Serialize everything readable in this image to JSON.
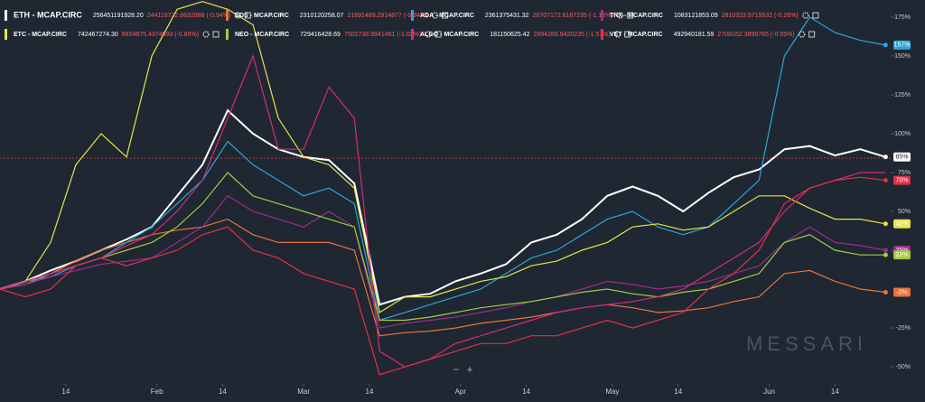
{
  "chart_data": {
    "type": "line",
    "x": [
      0,
      5,
      10,
      15,
      20,
      25,
      30,
      35,
      40,
      45,
      50,
      55,
      60,
      65,
      70,
      75,
      80,
      85,
      90,
      95,
      100,
      105,
      110,
      115,
      120,
      125,
      130,
      135,
      140,
      145,
      150,
      155,
      160,
      165,
      170,
      175
    ],
    "xlim": [
      0,
      176
    ],
    "xticks": [
      {
        "value": 13,
        "label": "14"
      },
      {
        "value": 31,
        "label": "Feb"
      },
      {
        "value": 44,
        "label": "14"
      },
      {
        "value": 60,
        "label": "Mar"
      },
      {
        "value": 73,
        "label": "14"
      },
      {
        "value": 91,
        "label": "Apr"
      },
      {
        "value": 104,
        "label": "14"
      },
      {
        "value": 121,
        "label": "May"
      },
      {
        "value": 134,
        "label": "14"
      },
      {
        "value": 152,
        "label": "Jun"
      },
      {
        "value": 165,
        "label": "14"
      }
    ],
    "ylim": [
      -61,
      186
    ],
    "yticks": [
      {
        "value": -50,
        "label": "-50%"
      },
      {
        "value": -25,
        "label": "-25%"
      },
      {
        "value": 25,
        "label": "25%"
      },
      {
        "value": 50,
        "label": "50%"
      },
      {
        "value": 75,
        "label": "75%"
      },
      {
        "value": 100,
        "label": "100%"
      },
      {
        "value": 125,
        "label": "125%"
      },
      {
        "value": 150,
        "label": "150%"
      },
      {
        "value": 175,
        "label": "175%"
      }
    ],
    "grid": false,
    "watermark": "MESSARI",
    "controls": [
      "−",
      "+"
    ],
    "series": [
      {
        "name": "ETH - MCAP.CIRC",
        "legend_value": "256451191928.20",
        "legend_change": "244119722.6632888 (-0.94%)",
        "color": "#ffffff",
        "values": [
          0,
          5,
          12,
          18,
          25,
          32,
          40,
          60,
          80,
          115,
          100,
          90,
          85,
          83,
          68,
          -10,
          -5,
          -3,
          5,
          10,
          16,
          30,
          35,
          45,
          60,
          66,
          60,
          50,
          62,
          72,
          77,
          90,
          92,
          86,
          90,
          85
        ],
        "value_labels": [
          null,
          null,
          null,
          null,
          null,
          null,
          null,
          null,
          null,
          null,
          null,
          null,
          null,
          null,
          null,
          null,
          null,
          null,
          null,
          null,
          null,
          null,
          null,
          null,
          null,
          null,
          null,
          null,
          null,
          null,
          null,
          null,
          null,
          null,
          null,
          "85%"
        ]
      },
      {
        "name": "EOS - MCAP.CIRC",
        "legend_value": "2310120258.07",
        "legend_change": "21891489.2914877 (-0.94%)",
        "color": "#e8743b",
        "values": [
          0,
          3,
          10,
          18,
          25,
          30,
          35,
          38,
          40,
          45,
          35,
          30,
          30,
          30,
          25,
          -30,
          -28,
          -27,
          -25,
          -22,
          -20,
          -18,
          -15,
          -12,
          -10,
          -12,
          -15,
          -14,
          -12,
          -8,
          -5,
          10,
          12,
          5,
          0,
          -2
        ],
        "value_labels": [
          null,
          null,
          null,
          null,
          null,
          null,
          null,
          null,
          null,
          null,
          null,
          null,
          null,
          null,
          null,
          null,
          null,
          null,
          null,
          null,
          null,
          null,
          null,
          null,
          null,
          null,
          null,
          null,
          null,
          null,
          null,
          null,
          null,
          null,
          null,
          "-2%"
        ]
      },
      {
        "name": "ADA - MCAP.CIRC",
        "legend_value": "2361375431.32",
        "legend_change": "26707172.6167235 (-1.12%)",
        "color": "#2aa6d9",
        "values": [
          0,
          5,
          8,
          15,
          20,
          30,
          40,
          55,
          70,
          95,
          80,
          70,
          60,
          65,
          55,
          -20,
          -15,
          -10,
          -5,
          0,
          10,
          20,
          25,
          35,
          45,
          50,
          40,
          35,
          40,
          55,
          70,
          150,
          175,
          165,
          160,
          157
        ],
        "value_labels": [
          null,
          null,
          null,
          null,
          null,
          null,
          null,
          null,
          null,
          null,
          null,
          null,
          null,
          null,
          null,
          null,
          null,
          null,
          null,
          null,
          null,
          null,
          null,
          null,
          null,
          null,
          null,
          null,
          null,
          null,
          null,
          null,
          null,
          null,
          null,
          "157%"
        ]
      },
      {
        "name": "TRX - MCAP.CIRC",
        "legend_value": "1083121853.09",
        "legend_change": "2810323.5715532 (-0.26%)",
        "color": "#9c2d8f",
        "values": [
          0,
          3,
          8,
          12,
          16,
          18,
          20,
          30,
          40,
          60,
          50,
          45,
          40,
          50,
          40,
          -25,
          -22,
          -20,
          -18,
          -15,
          -12,
          -8,
          -5,
          0,
          5,
          3,
          0,
          2,
          5,
          10,
          15,
          30,
          40,
          30,
          28,
          25
        ],
        "value_labels": [
          null,
          null,
          null,
          null,
          null,
          null,
          null,
          null,
          null,
          null,
          null,
          null,
          null,
          null,
          null,
          null,
          null,
          null,
          null,
          null,
          null,
          null,
          null,
          null,
          null,
          null,
          null,
          null,
          null,
          null,
          null,
          null,
          null,
          null,
          null,
          "25%"
        ]
      },
      {
        "name": "ETC - MCAP.CIRC",
        "legend_value": "742467274.30",
        "legend_change": "6654675.4374093 (-0.89%)",
        "color": "#e5e54a",
        "values": [
          0,
          5,
          30,
          80,
          100,
          85,
          150,
          180,
          185,
          180,
          170,
          110,
          85,
          80,
          65,
          -15,
          -5,
          -5,
          0,
          5,
          8,
          15,
          18,
          25,
          30,
          40,
          42,
          38,
          40,
          50,
          60,
          60,
          52,
          45,
          45,
          42
        ],
        "value_labels": [
          null,
          null,
          null,
          null,
          null,
          null,
          null,
          null,
          null,
          null,
          null,
          null,
          null,
          null,
          null,
          null,
          null,
          null,
          null,
          null,
          null,
          null,
          null,
          null,
          null,
          null,
          null,
          null,
          null,
          null,
          null,
          null,
          null,
          null,
          null,
          "42%"
        ]
      },
      {
        "name": "NEO - MCAP.CIRC",
        "legend_value": "729416428.69",
        "legend_change": "7502738.9941461 (-1.02%)",
        "color": "#a7c93f",
        "values": [
          0,
          5,
          10,
          15,
          20,
          25,
          30,
          40,
          55,
          75,
          60,
          55,
          50,
          45,
          40,
          -20,
          -20,
          -18,
          -15,
          -12,
          -10,
          -8,
          -5,
          -2,
          0,
          -3,
          -5,
          -2,
          0,
          5,
          10,
          30,
          35,
          25,
          22,
          22
        ],
        "value_labels": [
          null,
          null,
          null,
          null,
          null,
          null,
          null,
          null,
          null,
          null,
          null,
          null,
          null,
          null,
          null,
          null,
          null,
          null,
          null,
          null,
          null,
          null,
          null,
          null,
          null,
          null,
          null,
          null,
          null,
          null,
          null,
          null,
          null,
          null,
          null,
          "22%"
        ]
      },
      {
        "name": "ALGO - MCAP.CIRC",
        "legend_value": "181150625.42",
        "legend_change": "2894289.9420235 (-1.57%)",
        "color": "#d62a78",
        "values": [
          0,
          5,
          10,
          15,
          20,
          28,
          35,
          50,
          70,
          110,
          150,
          90,
          90,
          130,
          110,
          -40,
          -50,
          -45,
          -35,
          -30,
          -25,
          -20,
          -15,
          -12,
          -10,
          -8,
          -5,
          0,
          10,
          20,
          30,
          50,
          65,
          70,
          75,
          75
        ]
      },
      {
        "name": "VET - MCAP.CIRC",
        "legend_value": "492940181.59",
        "legend_change": "2708162.3899765 (-0.55%)",
        "color": "#e03145",
        "values": [
          0,
          -5,
          0,
          15,
          20,
          15,
          20,
          25,
          35,
          40,
          25,
          20,
          10,
          5,
          0,
          -55,
          -50,
          -45,
          -40,
          -35,
          -35,
          -30,
          -30,
          -25,
          -20,
          -25,
          -20,
          -15,
          0,
          10,
          25,
          55,
          65,
          70,
          72,
          70
        ],
        "value_labels": [
          null,
          null,
          null,
          null,
          null,
          null,
          null,
          null,
          null,
          null,
          null,
          null,
          null,
          null,
          null,
          null,
          null,
          null,
          null,
          null,
          null,
          null,
          null,
          null,
          null,
          null,
          null,
          null,
          null,
          null,
          null,
          null,
          null,
          null,
          null,
          "70%"
        ]
      }
    ]
  }
}
